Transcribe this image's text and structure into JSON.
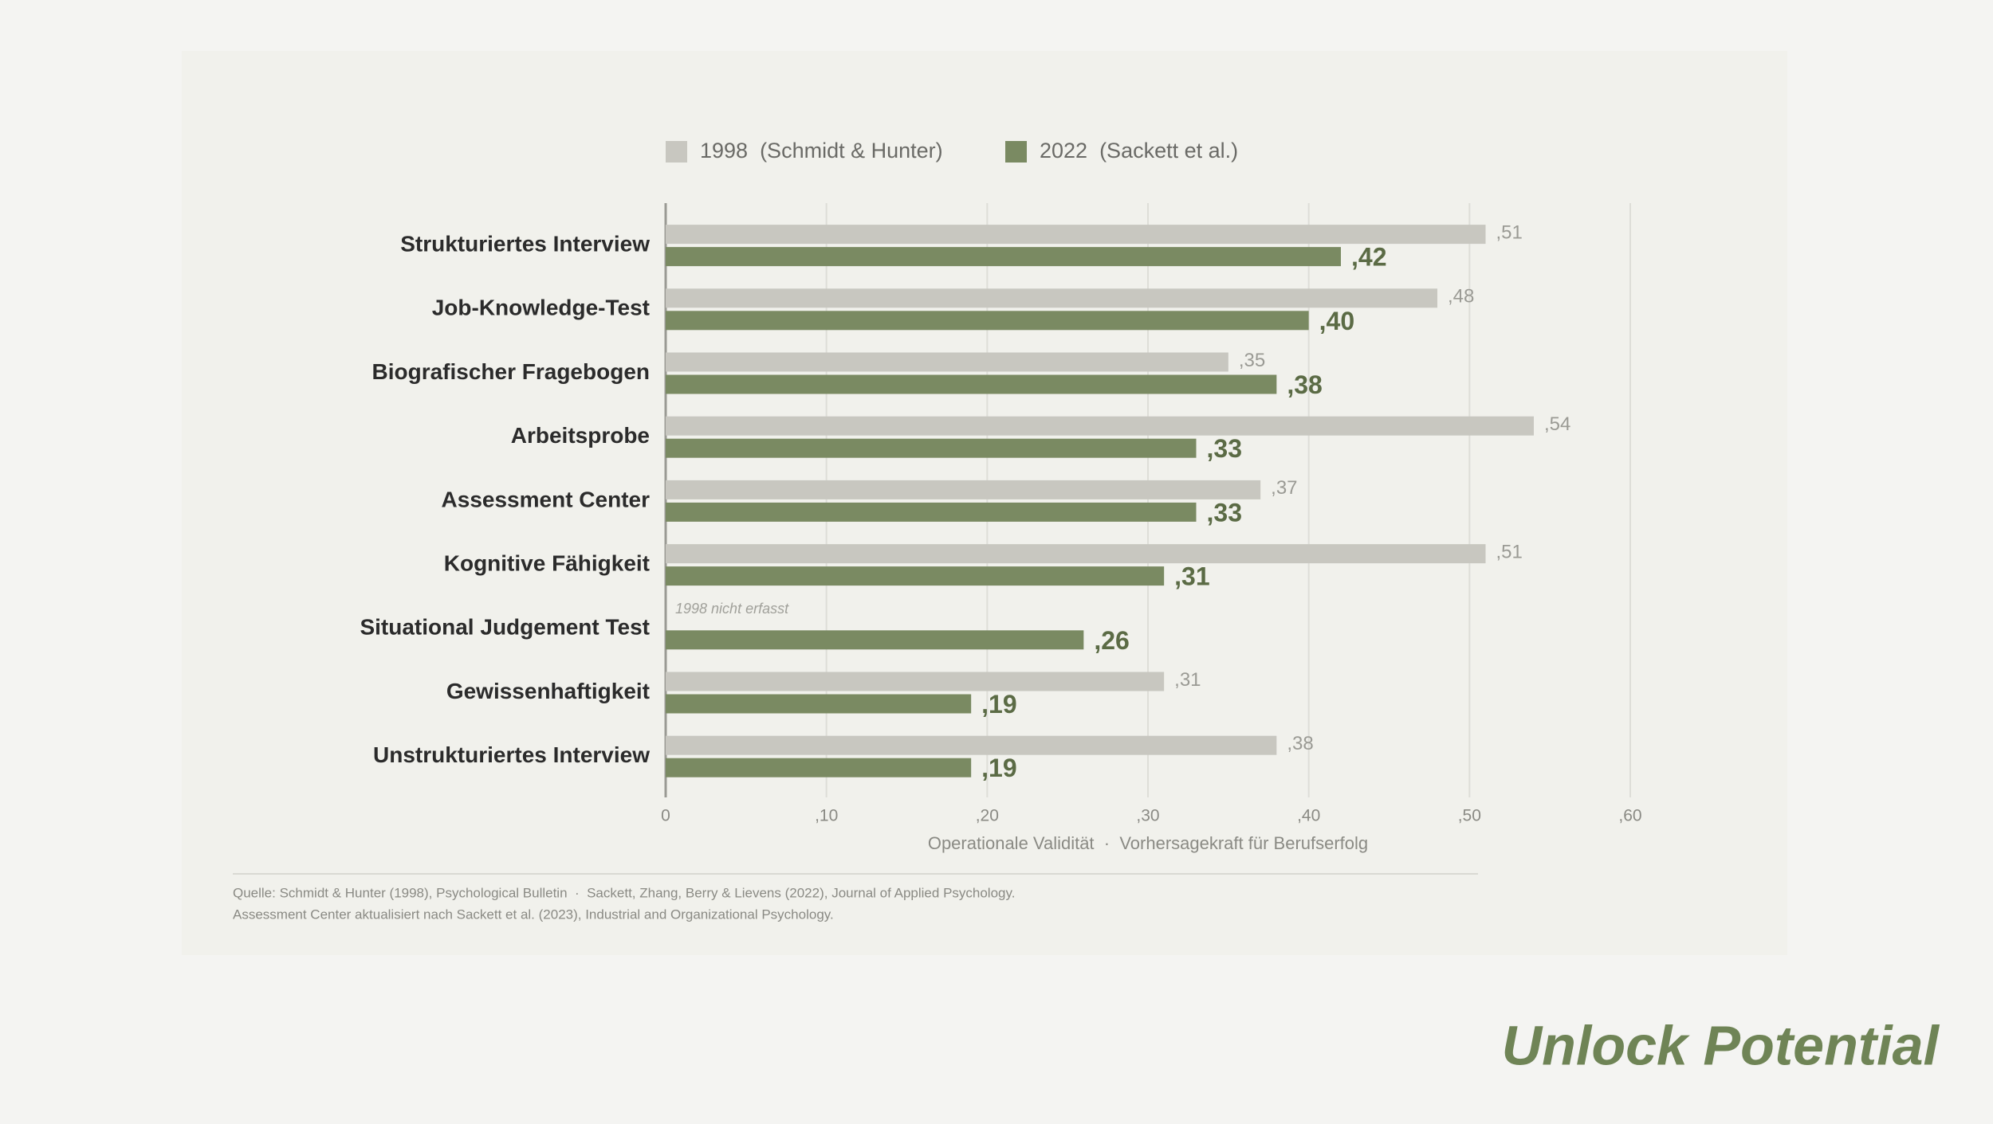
{
  "chart_data": {
    "type": "hbar",
    "categories": [
      "Strukturiertes Interview",
      "Job-Knowledge-Test",
      "Biografischer Fragebogen",
      "Arbeitsprobe",
      "Assessment Center",
      "Kognitive Fähigkeit",
      "Situational Judgement Test",
      "Gewissenhaftigkeit",
      "Unstrukturiertes Interview"
    ],
    "series": [
      {
        "name": "1998  (Schmidt & Hunter)",
        "color": "#c8c7c0",
        "values": [
          0.51,
          0.48,
          0.35,
          0.54,
          0.37,
          0.51,
          null,
          0.31,
          0.38
        ],
        "value_labels": [
          ",51",
          ",48",
          ",35",
          ",54",
          ",37",
          ",51",
          null,
          ",31",
          ",38"
        ]
      },
      {
        "name": "2022  (Sackett et al.)",
        "color": "#7a8a62",
        "values": [
          0.42,
          0.4,
          0.38,
          0.33,
          0.33,
          0.31,
          0.26,
          0.19,
          0.19
        ],
        "value_labels": [
          ",42",
          ",40",
          ",38",
          ",33",
          ",33",
          ",31",
          ",26",
          ",19",
          ",19"
        ]
      }
    ],
    "annotation": "1998 nicht erfasst",
    "xlabel": "Operationale Validität  ·  Vorhersagekraft für Berufserfolg",
    "xlim": [
      0,
      0.6
    ],
    "xticks": [
      0,
      {
        "value": 0.1,
        "label": ",10"
      },
      {
        "value": 0.2,
        "label": ",20"
      },
      {
        "value": 0.3,
        "label": ",30"
      },
      {
        "value": 0.4,
        "label": ",40"
      },
      {
        "value": 0.5,
        "label": ",50"
      },
      {
        "value": 0.6,
        "label": ",60"
      }
    ],
    "grid": true
  },
  "footer": {
    "sources": [
      "Quelle: Schmidt & Hunter (1998), Psychological Bulletin  ·  Sackett, Zhang, Berry & Lievens (2022), Journal of Applied Psychology.",
      "Assessment Center aktualisiert nach Sackett et al. (2023), Industrial and Organizational Psychology."
    ]
  },
  "brand": "Unlock Potential"
}
